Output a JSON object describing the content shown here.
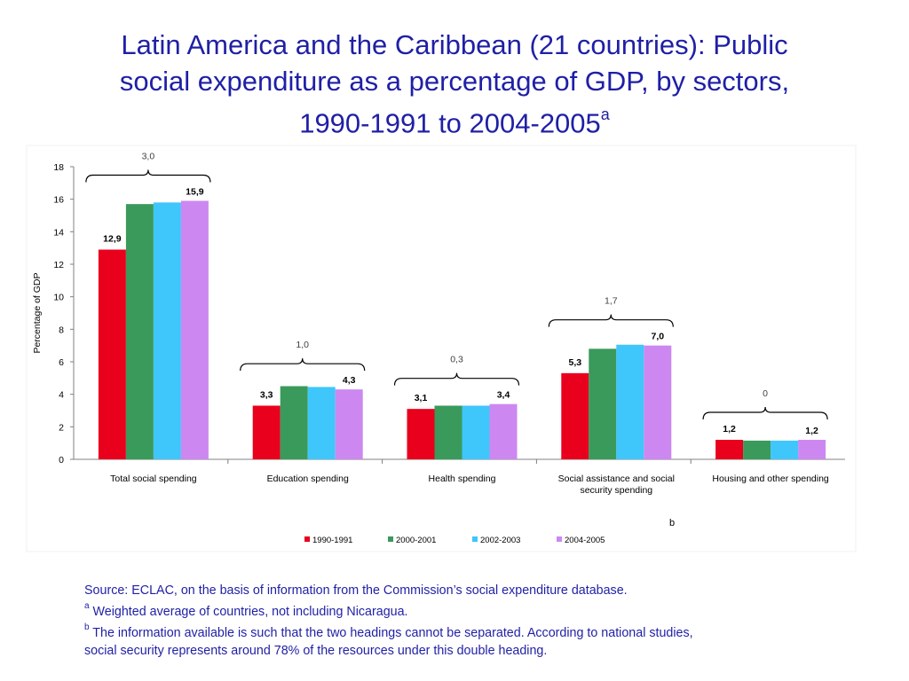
{
  "title": {
    "line1": "Latin America and the Caribbean (21 countries): Public",
    "line2": "social expenditure as a percentage of GDP, by sectors,",
    "line3": "1990-1991 to 2004-2005",
    "superscript": "a"
  },
  "chart_data": {
    "type": "bar",
    "ylabel": "Percentage of GDP",
    "xlabel": "",
    "ylim": [
      0,
      18
    ],
    "yticks": [
      0,
      2,
      4,
      6,
      8,
      10,
      12,
      14,
      16,
      18
    ],
    "grid": false,
    "legend_position": "bottom",
    "categories": [
      "Total social spending",
      "Education spending",
      "Health spending",
      "Social assistance and social security spending",
      "Housing and other spending"
    ],
    "category_label_lines": [
      [
        "Total social spending"
      ],
      [
        "Education spending"
      ],
      [
        "Health spending"
      ],
      [
        "Social assistance and social",
        "security spending"
      ],
      [
        "Housing and other spending"
      ]
    ],
    "series": [
      {
        "name": "1990-1991",
        "color": "#e8001c",
        "values": [
          12.9,
          3.3,
          3.1,
          5.3,
          1.2
        ]
      },
      {
        "name": "2000-2001",
        "color": "#3a9a5b",
        "values": [
          15.7,
          4.5,
          3.3,
          6.8,
          1.15
        ]
      },
      {
        "name": "2002-2003",
        "color": "#3fc6fa",
        "values": [
          15.8,
          4.45,
          3.3,
          7.05,
          1.15
        ]
      },
      {
        "name": "2004-2005",
        "color": "#cc88f0",
        "values": [
          15.9,
          4.3,
          3.4,
          7.0,
          1.2
        ]
      }
    ],
    "first_labels": [
      "12,9",
      "3,3",
      "3,1",
      "5,3",
      "1,2"
    ],
    "last_labels": [
      "15,9",
      "4,3",
      "3,4",
      "7,0",
      "1,2"
    ],
    "change_labels": [
      "3,0",
      "1,0",
      "0,3",
      "1,7",
      "0"
    ],
    "note_marker": "b"
  },
  "footnotes": {
    "source": "Source: ECLAC, on the basis of information from the Commission’s social expenditure database.",
    "a_marker": "a",
    "a_text": " Weighted average of countries, not including Nicaragua.",
    "b_marker": "b",
    "b_text_line1": " The information available is such that the two headings cannot be separated. According to national studies,",
    "b_text_line2": "social security represents around 78% of the resources under this double heading."
  }
}
